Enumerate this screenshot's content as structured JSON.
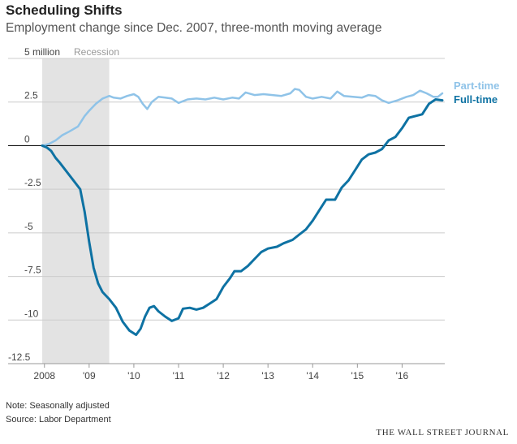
{
  "header": {
    "title": "Scheduling Shifts",
    "subtitle": "Employment change since Dec. 2007, three-month moving average"
  },
  "footer": {
    "note": "Note: Seasonally adjusted",
    "source": "Source: Labor Department",
    "publisher": "THE WALL STREET JOURNAL"
  },
  "colors": {
    "part_time": "#8fc3e8",
    "full_time": "#0e72a3",
    "recession": "#e3e3e3",
    "grid": "#cccccc"
  },
  "chart_data": {
    "type": "line",
    "unit": "million",
    "ylim": [
      -12.5,
      5
    ],
    "yticks": [
      {
        "value": 5,
        "label": "5 million"
      },
      {
        "value": 2.5,
        "label": "2.5"
      },
      {
        "value": 0,
        "label": "0"
      },
      {
        "value": -2.5,
        "label": "-2.5"
      },
      {
        "value": -5,
        "label": "-5"
      },
      {
        "value": -7.5,
        "label": "-7.5"
      },
      {
        "value": -10,
        "label": "-10"
      },
      {
        "value": -12.5,
        "label": "-12.5"
      }
    ],
    "xlim": [
      2007.9,
      2016.9
    ],
    "xticks": [
      {
        "value": 2008,
        "label": "2008"
      },
      {
        "value": 2009,
        "label": "'09"
      },
      {
        "value": 2010,
        "label": "'10"
      },
      {
        "value": 2011,
        "label": "'11"
      },
      {
        "value": 2012,
        "label": "'12"
      },
      {
        "value": 2013,
        "label": "'13"
      },
      {
        "value": 2014,
        "label": "'14"
      },
      {
        "value": 2015,
        "label": "'15"
      },
      {
        "value": 2016,
        "label": "'16"
      }
    ],
    "recession": {
      "start": 2007.95,
      "end": 2009.45,
      "label": "Recession"
    },
    "grid": true,
    "series": [
      {
        "name": "Part-time",
        "color": "#8fc3e8",
        "points": [
          [
            2007.95,
            0.0
          ],
          [
            2008.1,
            0.1
          ],
          [
            2008.25,
            0.3
          ],
          [
            2008.4,
            0.6
          ],
          [
            2008.55,
            0.8
          ],
          [
            2008.75,
            1.1
          ],
          [
            2008.9,
            1.7
          ],
          [
            2009.0,
            2.0
          ],
          [
            2009.15,
            2.4
          ],
          [
            2009.3,
            2.7
          ],
          [
            2009.45,
            2.85
          ],
          [
            2009.55,
            2.75
          ],
          [
            2009.7,
            2.7
          ],
          [
            2009.85,
            2.85
          ],
          [
            2010.0,
            2.95
          ],
          [
            2010.1,
            2.8
          ],
          [
            2010.2,
            2.4
          ],
          [
            2010.3,
            2.1
          ],
          [
            2010.4,
            2.5
          ],
          [
            2010.55,
            2.8
          ],
          [
            2010.7,
            2.75
          ],
          [
            2010.85,
            2.7
          ],
          [
            2011.0,
            2.45
          ],
          [
            2011.2,
            2.65
          ],
          [
            2011.4,
            2.7
          ],
          [
            2011.6,
            2.65
          ],
          [
            2011.8,
            2.75
          ],
          [
            2012.0,
            2.65
          ],
          [
            2012.2,
            2.75
          ],
          [
            2012.35,
            2.7
          ],
          [
            2012.5,
            3.05
          ],
          [
            2012.7,
            2.9
          ],
          [
            2012.9,
            2.95
          ],
          [
            2013.1,
            2.9
          ],
          [
            2013.3,
            2.85
          ],
          [
            2013.5,
            3.0
          ],
          [
            2013.6,
            3.25
          ],
          [
            2013.7,
            3.2
          ],
          [
            2013.85,
            2.8
          ],
          [
            2014.0,
            2.7
          ],
          [
            2014.2,
            2.8
          ],
          [
            2014.4,
            2.7
          ],
          [
            2014.55,
            3.1
          ],
          [
            2014.7,
            2.85
          ],
          [
            2014.9,
            2.8
          ],
          [
            2015.1,
            2.75
          ],
          [
            2015.25,
            2.9
          ],
          [
            2015.4,
            2.85
          ],
          [
            2015.55,
            2.6
          ],
          [
            2015.7,
            2.45
          ],
          [
            2015.9,
            2.6
          ],
          [
            2016.1,
            2.8
          ],
          [
            2016.25,
            2.9
          ],
          [
            2016.4,
            3.15
          ],
          [
            2016.55,
            3.0
          ],
          [
            2016.7,
            2.8
          ],
          [
            2016.8,
            2.8
          ],
          [
            2016.9,
            3.0
          ]
        ]
      },
      {
        "name": "Full-time",
        "color": "#0e72a3",
        "points": [
          [
            2007.95,
            0.0
          ],
          [
            2008.05,
            -0.1
          ],
          [
            2008.15,
            -0.3
          ],
          [
            2008.25,
            -0.7
          ],
          [
            2008.35,
            -1.0
          ],
          [
            2008.5,
            -1.5
          ],
          [
            2008.65,
            -2.0
          ],
          [
            2008.8,
            -2.5
          ],
          [
            2008.9,
            -3.8
          ],
          [
            2009.0,
            -5.5
          ],
          [
            2009.1,
            -7.0
          ],
          [
            2009.2,
            -7.9
          ],
          [
            2009.3,
            -8.4
          ],
          [
            2009.45,
            -8.8
          ],
          [
            2009.6,
            -9.3
          ],
          [
            2009.75,
            -10.1
          ],
          [
            2009.9,
            -10.6
          ],
          [
            2010.05,
            -10.85
          ],
          [
            2010.15,
            -10.5
          ],
          [
            2010.25,
            -9.8
          ],
          [
            2010.35,
            -9.3
          ],
          [
            2010.45,
            -9.2
          ],
          [
            2010.55,
            -9.5
          ],
          [
            2010.7,
            -9.8
          ],
          [
            2010.85,
            -10.05
          ],
          [
            2011.0,
            -9.9
          ],
          [
            2011.1,
            -9.35
          ],
          [
            2011.25,
            -9.3
          ],
          [
            2011.4,
            -9.4
          ],
          [
            2011.55,
            -9.3
          ],
          [
            2011.7,
            -9.05
          ],
          [
            2011.85,
            -8.8
          ],
          [
            2012.0,
            -8.1
          ],
          [
            2012.15,
            -7.6
          ],
          [
            2012.25,
            -7.2
          ],
          [
            2012.4,
            -7.2
          ],
          [
            2012.55,
            -6.9
          ],
          [
            2012.7,
            -6.5
          ],
          [
            2012.85,
            -6.1
          ],
          [
            2013.0,
            -5.9
          ],
          [
            2013.2,
            -5.8
          ],
          [
            2013.35,
            -5.6
          ],
          [
            2013.55,
            -5.4
          ],
          [
            2013.7,
            -5.1
          ],
          [
            2013.85,
            -4.8
          ],
          [
            2014.0,
            -4.3
          ],
          [
            2014.15,
            -3.7
          ],
          [
            2014.3,
            -3.1
          ],
          [
            2014.5,
            -3.1
          ],
          [
            2014.65,
            -2.4
          ],
          [
            2014.8,
            -2.0
          ],
          [
            2014.95,
            -1.4
          ],
          [
            2015.1,
            -0.8
          ],
          [
            2015.25,
            -0.5
          ],
          [
            2015.4,
            -0.4
          ],
          [
            2015.55,
            -0.2
          ],
          [
            2015.7,
            0.3
          ],
          [
            2015.85,
            0.5
          ],
          [
            2016.0,
            1.0
          ],
          [
            2016.15,
            1.6
          ],
          [
            2016.3,
            1.7
          ],
          [
            2016.45,
            1.8
          ],
          [
            2016.6,
            2.4
          ],
          [
            2016.75,
            2.65
          ],
          [
            2016.9,
            2.6
          ]
        ]
      }
    ]
  }
}
